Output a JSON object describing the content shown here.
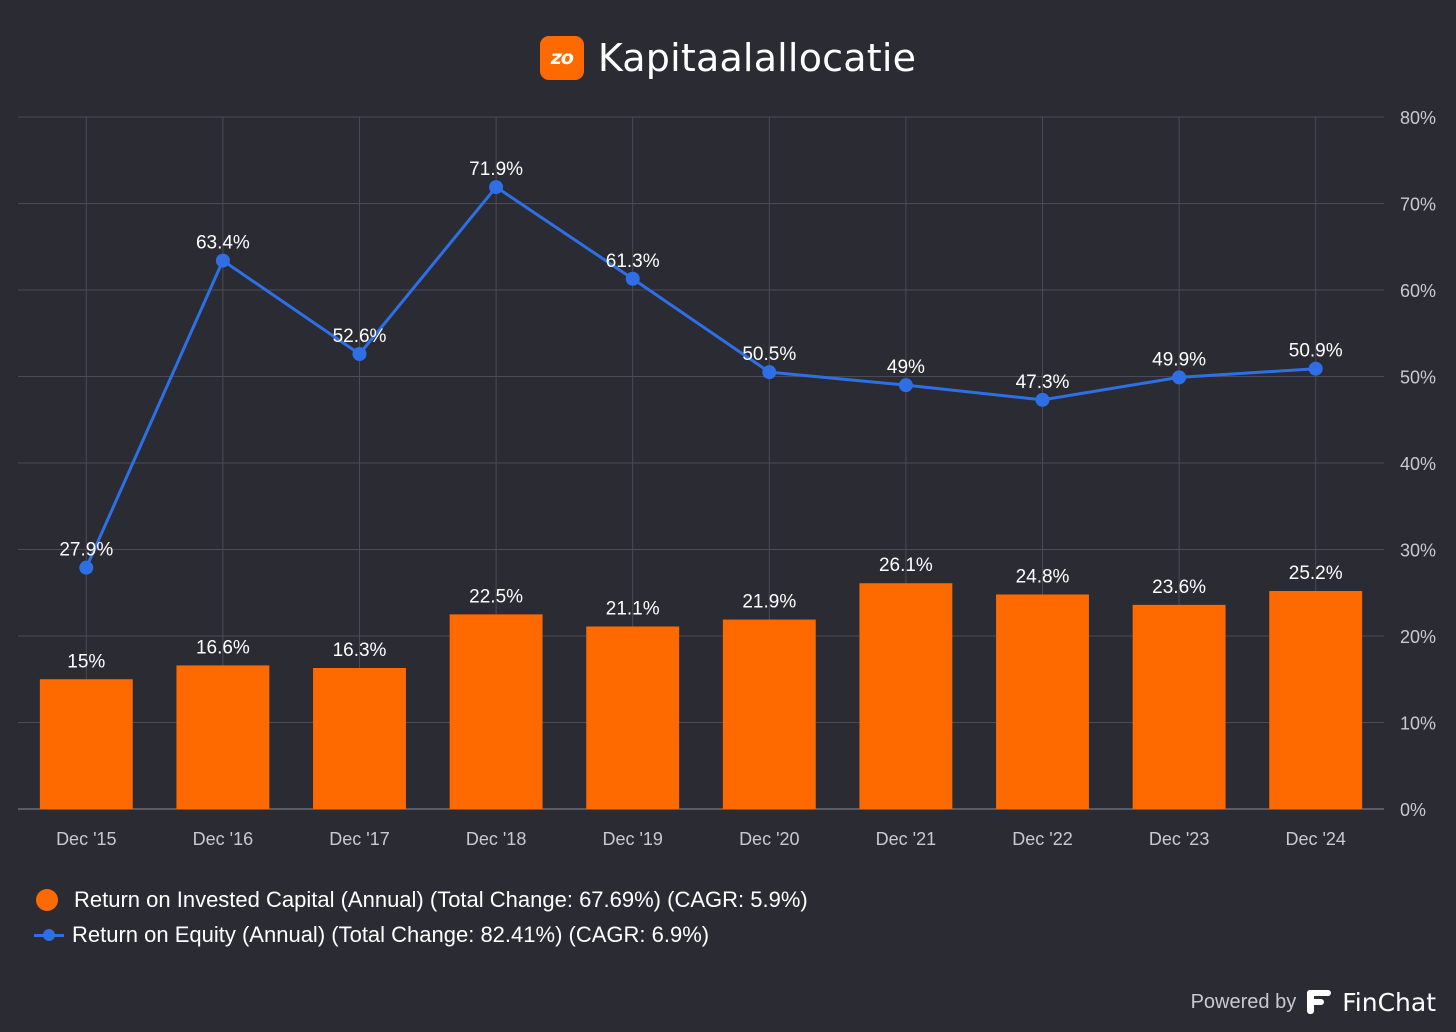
{
  "header": {
    "logo_text": "zo",
    "title": "Kapitaalallocatie"
  },
  "colors": {
    "background": "#2a2b33",
    "bar": "#ff6a00",
    "line": "#2f6fe6",
    "grid": "#4a4b55",
    "tick_text": "#c9cad1"
  },
  "chart_data": {
    "type": "bar",
    "categories": [
      "Dec '15",
      "Dec '16",
      "Dec '17",
      "Dec '18",
      "Dec '19",
      "Dec '20",
      "Dec '21",
      "Dec '22",
      "Dec '23",
      "Dec '24"
    ],
    "series": [
      {
        "name": "Return on Invested Capital (Annual) (Total Change: 67.69%) (CAGR: 5.9%)",
        "type": "bar",
        "values": [
          15,
          16.6,
          16.3,
          22.5,
          21.1,
          21.9,
          26.1,
          24.8,
          23.6,
          25.2
        ],
        "labels": [
          "15%",
          "16.6%",
          "16.3%",
          "22.5%",
          "21.1%",
          "21.9%",
          "26.1%",
          "24.8%",
          "23.6%",
          "25.2%"
        ]
      },
      {
        "name": "Return on Equity (Annual) (Total Change: 82.41%) (CAGR: 6.9%)",
        "type": "line",
        "values": [
          27.9,
          63.4,
          52.6,
          71.9,
          61.3,
          50.5,
          49,
          47.3,
          49.9,
          50.9
        ],
        "labels": [
          "27.9%",
          "63.4%",
          "52.6%",
          "71.9%",
          "61.3%",
          "50.5%",
          "49%",
          "47.3%",
          "49.9%",
          "50.9%"
        ]
      }
    ],
    "y_ticks": [
      "0%",
      "10%",
      "20%",
      "30%",
      "40%",
      "50%",
      "60%",
      "70%",
      "80%"
    ],
    "ylim": [
      0,
      80
    ],
    "y_axis_position": "right",
    "grid": true,
    "legend_position": "bottom-left"
  },
  "footer": {
    "powered_by": "Powered by",
    "brand": "FinChat"
  }
}
